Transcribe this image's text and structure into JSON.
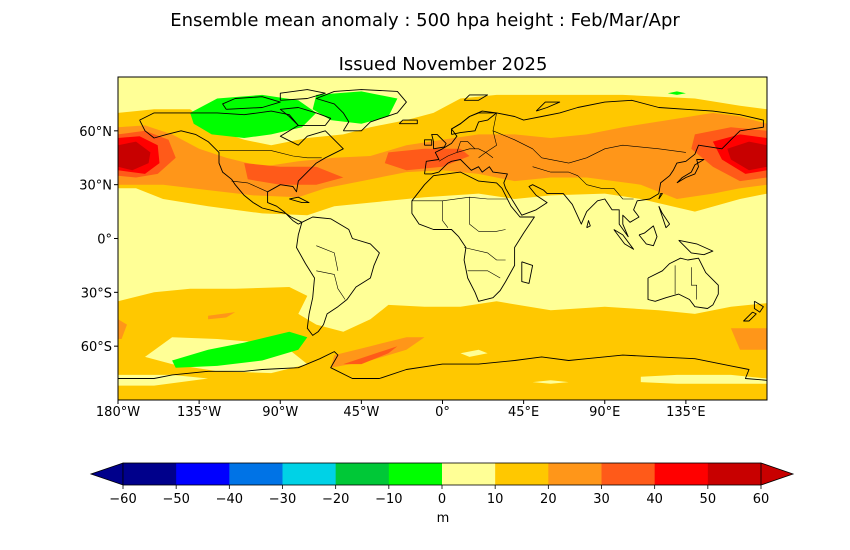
{
  "figure": {
    "title": "Ensemble mean anomaly : 500 hpa height : Feb/Mar/Apr",
    "subtitle": "Issued November 2025"
  },
  "map": {
    "lat_labels": [
      {
        "value": 60,
        "label": "60°N"
      },
      {
        "value": 30,
        "label": "30°N"
      },
      {
        "value": 0,
        "label": "0°"
      },
      {
        "value": -30,
        "label": "30°S"
      },
      {
        "value": -60,
        "label": "60°S"
      }
    ],
    "lon_labels": [
      {
        "value": -180,
        "label": "180°W"
      },
      {
        "value": -135,
        "label": "135°W"
      },
      {
        "value": -90,
        "label": "90°W"
      },
      {
        "value": -45,
        "label": "45°W"
      },
      {
        "value": 0,
        "label": "0°"
      },
      {
        "value": 45,
        "label": "45°E"
      },
      {
        "value": 90,
        "label": "90°E"
      },
      {
        "value": 135,
        "label": "135°E"
      }
    ],
    "lon_range": [
      -180,
      180
    ],
    "lat_range": [
      -90,
      90
    ]
  },
  "colorbar": {
    "unit": "m",
    "levels": [
      -60,
      -50,
      -40,
      -30,
      -20,
      -10,
      0,
      10,
      20,
      30,
      40,
      50,
      60
    ],
    "tick_labels": [
      "−60",
      "−50",
      "−40",
      "−30",
      "−20",
      "−10",
      "0",
      "10",
      "20",
      "30",
      "40",
      "50",
      "60"
    ],
    "colors": [
      "#00008b",
      "#0000ff",
      "#0073e6",
      "#00d2e6",
      "#00c837",
      "#00ff00",
      "#ffff96",
      "#ffc800",
      "#ff9619",
      "#ff5a19",
      "#ff0000",
      "#c80000"
    ],
    "extend_low_color": "#00008b",
    "extend_high_color": "#c80000"
  },
  "chart_data": {
    "type": "heatmap",
    "variable": "500 hpa height anomaly",
    "units": "m",
    "regions": [
      {
        "name": "North Pacific high anomaly",
        "lon": -165,
        "lat": 45,
        "value": 55
      },
      {
        "name": "Western North Pacific high anomaly",
        "lon": 170,
        "lat": 45,
        "value": 55
      },
      {
        "name": "Canada low anomaly",
        "lon": -110,
        "lat": 65,
        "value": -5
      },
      {
        "name": "Greenland low anomaly",
        "lon": -45,
        "lat": 70,
        "value": -5
      },
      {
        "name": "Southern Ocean low anomaly",
        "lon": -95,
        "lat": -65,
        "value": -5
      },
      {
        "name": "North Atlantic positive anomaly",
        "lon": -20,
        "lat": 45,
        "value": 35
      },
      {
        "name": "Southern Ocean positive belt",
        "lon": 30,
        "lat": -60,
        "value": 25
      }
    ]
  }
}
